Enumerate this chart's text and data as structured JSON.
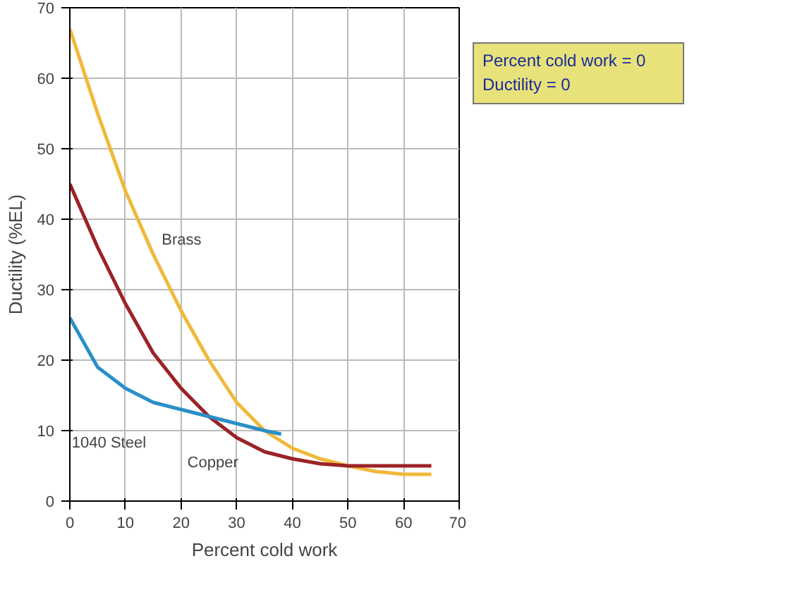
{
  "chart_data": {
    "type": "line",
    "xlabel": "Percent cold work",
    "ylabel": "Ductility (%EL)",
    "xlim": [
      0,
      70
    ],
    "ylim": [
      0,
      70
    ],
    "xticks": [
      0,
      10,
      20,
      30,
      40,
      50,
      60,
      70
    ],
    "yticks": [
      0,
      10,
      20,
      30,
      40,
      50,
      60,
      70
    ],
    "grid": true,
    "series": [
      {
        "name": "Brass",
        "color": "#f0b93a",
        "x": [
          0,
          5,
          10,
          15,
          20,
          25,
          30,
          35,
          40,
          45,
          50,
          55,
          60,
          65
        ],
        "values": [
          67,
          55,
          44,
          35,
          27,
          20,
          14,
          10,
          7.5,
          6,
          5,
          4.2,
          3.8,
          3.8
        ]
      },
      {
        "name": "Copper",
        "color": "#9b2226",
        "x": [
          0,
          5,
          10,
          15,
          20,
          25,
          30,
          35,
          40,
          45,
          50,
          55,
          60,
          65
        ],
        "values": [
          45,
          36,
          28,
          21,
          16,
          12,
          9,
          7,
          6,
          5.3,
          5,
          5,
          5,
          5
        ]
      },
      {
        "name": "1040 Steel",
        "color": "#2a8fc8",
        "x": [
          0,
          5,
          10,
          15,
          20,
          25,
          30,
          35,
          38
        ],
        "values": [
          26,
          19,
          16,
          14,
          13,
          12,
          11,
          10,
          9.5
        ]
      }
    ],
    "annotations": [
      "Percent cold work = 0",
      "Ductility = 0"
    ]
  }
}
